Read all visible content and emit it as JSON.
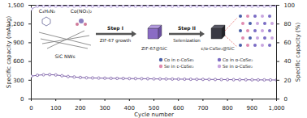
{
  "chart_data": {
    "type": "line",
    "x_label": "Cycle number",
    "y_label": "Specific capacity (mAh/g)",
    "y2_label": "Specific capacity (%)",
    "x": [
      0,
      25,
      50,
      75,
      100,
      125,
      150,
      175,
      200,
      225,
      250,
      275,
      300,
      325,
      350,
      375,
      400,
      425,
      450,
      475,
      500,
      525,
      550,
      575,
      600,
      625,
      650,
      675,
      700,
      725,
      750,
      775,
      800,
      825,
      850,
      875,
      900,
      925,
      950,
      975,
      1000
    ],
    "xlim": [
      0,
      1000
    ],
    "xticks": [
      0,
      100,
      200,
      300,
      400,
      500,
      600,
      700,
      800,
      900,
      1000
    ],
    "ylim": [
      0,
      1500
    ],
    "yticks": [
      0,
      300,
      600,
      900,
      1200,
      1500
    ],
    "y2lim": [
      0,
      100
    ],
    "y2ticks": [
      0,
      20,
      40,
      60,
      80,
      100
    ],
    "marker": "circle",
    "series": [
      {
        "color": "#7b5ea7",
        "axis": "y",
        "values": [
          365,
          380,
          388,
          390,
          385,
          372,
          360,
          352,
          345,
          340,
          337,
          335,
          333,
          331,
          330,
          329,
          327,
          326,
          325,
          324,
          322,
          321,
          320,
          319,
          318,
          317,
          316,
          315,
          314,
          313,
          312,
          311,
          310,
          309,
          309,
          308,
          307,
          306,
          306,
          305,
          304
        ]
      },
      {
        "color": "#a58fd0",
        "axis": "y2",
        "values": [
          96,
          99,
          99,
          99,
          99,
          99,
          99,
          99,
          99,
          99,
          99,
          99,
          99,
          99,
          99,
          99,
          99,
          99,
          99,
          99,
          99,
          99,
          99,
          99,
          99,
          99,
          99,
          99,
          99,
          99,
          99,
          99,
          99,
          99,
          99,
          99,
          99,
          99,
          99,
          99,
          99
        ]
      }
    ]
  },
  "schematic": {
    "reagents": [
      "C₄H₆N₂",
      "Co(NO₃)₂"
    ],
    "substrate": "SiC NWs",
    "steps": [
      {
        "step": "Step I",
        "process": "ZIF-67 growth",
        "product": "ZIF-67@SiC"
      },
      {
        "step": "Step II",
        "process": "Selenization",
        "product": "c/o-CoSe₂@SiC"
      }
    ],
    "legend": [
      {
        "label": "Co in c-CoSe₂",
        "color": "#4a5fa8"
      },
      {
        "label": "Co in o-CoSe₂",
        "color": "#7a6cc4"
      },
      {
        "label": "Se in c-CoSe₂",
        "color": "#e08ab0"
      },
      {
        "label": "Se in o-CoSe₂",
        "color": "#c9a6e0"
      }
    ]
  }
}
